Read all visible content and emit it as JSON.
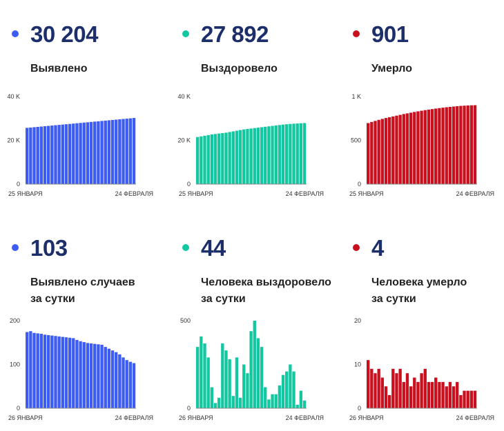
{
  "colors": {
    "blue": "#3d5cf2",
    "green": "#13c7a1",
    "red": "#c8101e",
    "number": "#1c2f6b"
  },
  "panels": [
    {
      "value": "30 204",
      "label": [
        "Выявлено"
      ],
      "color": "#3d5cf2"
    },
    {
      "value": "27 892",
      "label": [
        "Выздоровело"
      ],
      "color": "#13c7a1"
    },
    {
      "value": "901",
      "label": [
        "Умерло"
      ],
      "color": "#c8101e"
    },
    {
      "value": "103",
      "label": [
        "Выявлено случаев",
        "за сутки"
      ],
      "color": "#3d5cf2"
    },
    {
      "value": "44",
      "label": [
        "Человека выздоровело",
        "за сутки"
      ],
      "color": "#13c7a1"
    },
    {
      "value": "4",
      "label": [
        "Человека умерло",
        "за сутки"
      ],
      "color": "#c8101e"
    }
  ],
  "chart_data": [
    {
      "type": "bar",
      "series_color": "#3d5cf2",
      "yticks": [
        {
          "v": 0,
          "t": "0"
        },
        {
          "v": 20000,
          "t": "20 K"
        },
        {
          "v": 40000,
          "t": "40 K"
        }
      ],
      "ylim": [
        0,
        40000
      ],
      "xstart": "25 ЯНВАРЯ",
      "xend": "24 ФЕВРАЛЯ",
      "values": [
        25700,
        25850,
        26000,
        26150,
        26300,
        26450,
        26600,
        26750,
        26900,
        27050,
        27200,
        27350,
        27500,
        27650,
        27800,
        27950,
        28100,
        28250,
        28400,
        28550,
        28700,
        28850,
        29000,
        29150,
        29300,
        29450,
        29600,
        29750,
        29900,
        30050,
        30204
      ]
    },
    {
      "type": "bar",
      "series_color": "#13c7a1",
      "yticks": [
        {
          "v": 0,
          "t": "0"
        },
        {
          "v": 20000,
          "t": "20 K"
        },
        {
          "v": 40000,
          "t": "40 K"
        }
      ],
      "ylim": [
        0,
        40000
      ],
      "xstart": "25 ЯНВАРЯ",
      "xend": "24 ФЕВРАЛЯ",
      "values": [
        21500,
        21800,
        22100,
        22400,
        22700,
        22900,
        23100,
        23300,
        23500,
        23800,
        24100,
        24400,
        24700,
        25000,
        25200,
        25400,
        25600,
        25800,
        26000,
        26200,
        26400,
        26600,
        26800,
        27000,
        27200,
        27350,
        27500,
        27600,
        27700,
        27800,
        27892
      ]
    },
    {
      "type": "bar",
      "series_color": "#c8101e",
      "yticks": [
        {
          "v": 0,
          "t": "0"
        },
        {
          "v": 500,
          "t": "500"
        },
        {
          "v": 1000,
          "t": "1 K"
        }
      ],
      "ylim": [
        0,
        1000
      ],
      "xstart": "25 ЯНВАРЯ",
      "xend": "24 ФЕВРАЛЯ",
      "values": [
        697,
        710,
        722,
        734,
        745,
        755,
        764,
        773,
        782,
        791,
        800,
        808,
        816,
        824,
        831,
        838,
        845,
        851,
        857,
        863,
        868,
        873,
        878,
        882,
        886,
        890,
        893,
        896,
        898,
        900,
        901
      ]
    },
    {
      "type": "bar",
      "series_color": "#3d5cf2",
      "yticks": [
        {
          "v": 0,
          "t": "0"
        },
        {
          "v": 100,
          "t": "100"
        },
        {
          "v": 200,
          "t": "200"
        }
      ],
      "ylim": [
        0,
        200
      ],
      "xstart": "26 ЯНВАРЯ",
      "xend": "24 ФЕВРАЛЯ",
      "values": [
        174,
        176,
        172,
        171,
        170,
        168,
        167,
        166,
        165,
        164,
        163,
        162,
        161,
        160,
        156,
        153,
        151,
        149,
        148,
        147,
        146,
        145,
        140,
        136,
        132,
        128,
        123,
        116,
        110,
        106,
        103
      ]
    },
    {
      "type": "bar",
      "series_color": "#13c7a1",
      "yticks": [
        {
          "v": 0,
          "t": "0"
        },
        {
          "v": 500,
          "t": "500"
        }
      ],
      "ylim": [
        0,
        500
      ],
      "xstart": "26 ЯНВАРЯ",
      "xend": "24 ФЕВРАЛЯ",
      "values": [
        350,
        410,
        370,
        290,
        120,
        30,
        60,
        370,
        330,
        280,
        70,
        290,
        60,
        250,
        200,
        440,
        500,
        400,
        350,
        120,
        50,
        80,
        80,
        130,
        190,
        210,
        250,
        210,
        20,
        100,
        44
      ]
    },
    {
      "type": "bar",
      "series_color": "#c8101e",
      "yticks": [
        {
          "v": 0,
          "t": "0"
        },
        {
          "v": 10,
          "t": "10"
        },
        {
          "v": 20,
          "t": "20"
        }
      ],
      "ylim": [
        0,
        20
      ],
      "xstart": "26 ЯНВАРЯ",
      "xend": "24 ФЕВРАЛЯ",
      "values": [
        11,
        9,
        8,
        9,
        7,
        5,
        3,
        9,
        8,
        9,
        6,
        8,
        5,
        7,
        6,
        8,
        9,
        6,
        6,
        7,
        6,
        6,
        5,
        6,
        5,
        6,
        3,
        4,
        4,
        4,
        4
      ]
    }
  ]
}
